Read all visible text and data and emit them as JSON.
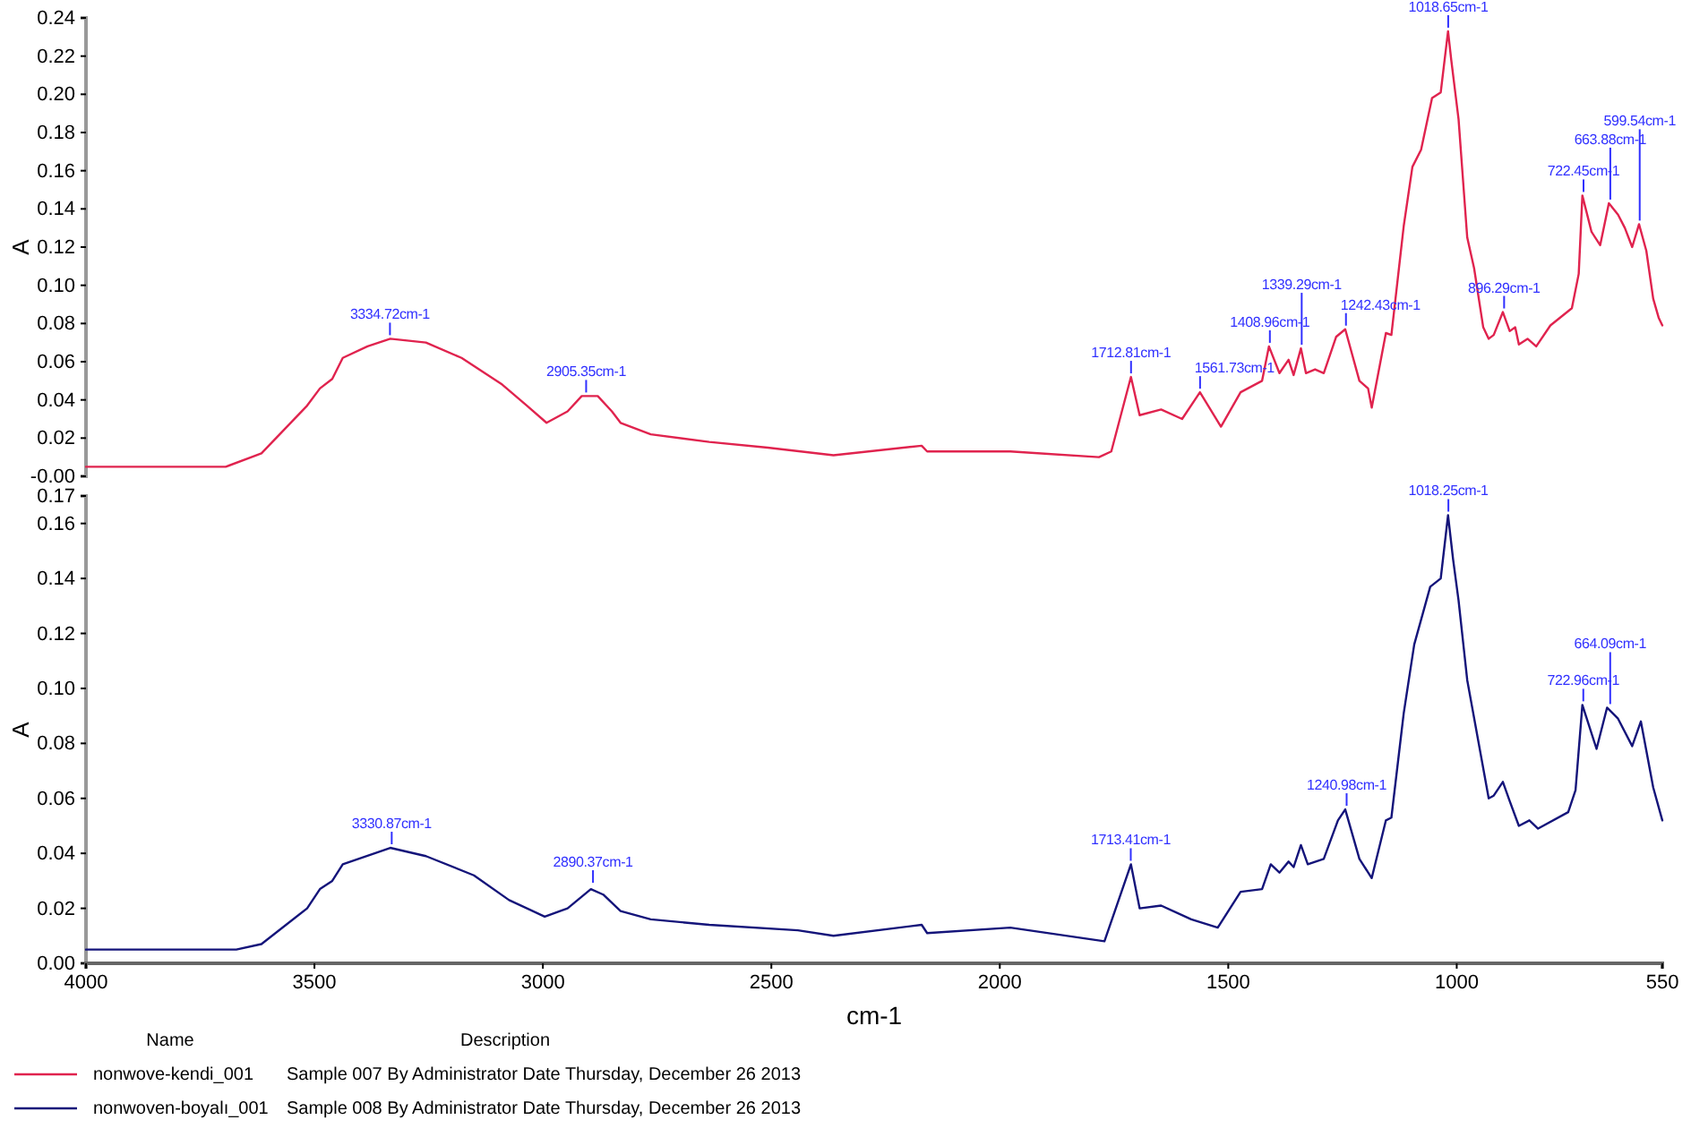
{
  "chart_data": [
    {
      "type": "line",
      "ylabel": "A",
      "xlim": [
        4000,
        550
      ],
      "ylim": [
        0,
        0.24
      ],
      "tick_labels": "y",
      "legend": "bottom",
      "grid": false,
      "line_style": "solid",
      "marker": "none",
      "yticks": [
        {
          "value": 0,
          "label": "-0.00"
        },
        {
          "value": 0.02,
          "label": "0.02"
        },
        {
          "value": 0.04,
          "label": "0.04"
        },
        {
          "value": 0.06,
          "label": "0.06"
        },
        {
          "value": 0.08,
          "label": "0.08"
        },
        {
          "value": 0.1,
          "label": "0.10"
        },
        {
          "value": 0.12,
          "label": "0.12"
        },
        {
          "value": 0.14,
          "label": "0.14"
        },
        {
          "value": 0.16,
          "label": "0.16"
        },
        {
          "value": 0.18,
          "label": "0.18"
        },
        {
          "value": 0.2,
          "label": "0.20"
        },
        {
          "value": 0.22,
          "label": "0.22"
        },
        {
          "value": 0.24,
          "label": "0.24"
        }
      ],
      "series": [
        {
          "name": "nonwove-kendi_001",
          "color": "#e0234e",
          "x": [
            4000,
            3694,
            3616,
            3516,
            3488,
            3461,
            3438,
            3384,
            3334,
            3256,
            3178,
            3089,
            3035,
            2992,
            2946,
            2915,
            2880,
            2849,
            2830,
            2764,
            2636,
            2508,
            2364,
            2171,
            2159,
            1977,
            1783,
            1756,
            1713,
            1694,
            1647,
            1601,
            1562,
            1516,
            1473,
            1426,
            1411,
            1388,
            1368,
            1357,
            1341,
            1330,
            1310,
            1291,
            1264,
            1244,
            1213,
            1194,
            1186,
            1155,
            1143,
            1116,
            1097,
            1078,
            1054,
            1035,
            1019,
            1012,
            996,
            977,
            962,
            942,
            930,
            919,
            899,
            884,
            872,
            864,
            845,
            826,
            795,
            748,
            733,
            725,
            705,
            686,
            667,
            647,
            632,
            616,
            601,
            585,
            570,
            558,
            550
          ],
          "values": [
            0.005,
            0.005,
            0.012,
            0.037,
            0.046,
            0.051,
            0.062,
            0.068,
            0.072,
            0.07,
            0.062,
            0.048,
            0.037,
            0.028,
            0.034,
            0.042,
            0.042,
            0.034,
            0.028,
            0.022,
            0.018,
            0.015,
            0.011,
            0.016,
            0.013,
            0.013,
            0.01,
            0.013,
            0.052,
            0.032,
            0.035,
            0.03,
            0.044,
            0.026,
            0.044,
            0.05,
            0.068,
            0.054,
            0.061,
            0.053,
            0.067,
            0.054,
            0.056,
            0.054,
            0.073,
            0.077,
            0.05,
            0.046,
            0.036,
            0.075,
            0.074,
            0.131,
            0.162,
            0.171,
            0.198,
            0.201,
            0.233,
            0.218,
            0.187,
            0.125,
            0.109,
            0.078,
            0.072,
            0.074,
            0.086,
            0.076,
            0.078,
            0.069,
            0.072,
            0.068,
            0.079,
            0.088,
            0.106,
            0.147,
            0.128,
            0.121,
            0.143,
            0.137,
            0.13,
            0.12,
            0.132,
            0.118,
            0.093,
            0.083,
            0.079
          ]
        }
      ],
      "annotations": [
        {
          "text": "3334.72cm-1",
          "x": 3334.72,
          "y": 0.072
        },
        {
          "text": "2905.35cm-1",
          "x": 2905.35,
          "y": 0.042
        },
        {
          "text": "1712.81cm-1",
          "x": 1712.81,
          "y": 0.052
        },
        {
          "text": "1561.73cm-1",
          "x": 1561.73,
          "y": 0.044
        },
        {
          "text": "1408.96cm-1",
          "x": 1408.96,
          "y": 0.068
        },
        {
          "text": "1339.29cm-1",
          "x": 1339.29,
          "y": 0.067
        },
        {
          "text": "1242.43cm-1",
          "x": 1242.43,
          "y": 0.077
        },
        {
          "text": "1018.65cm-1",
          "x": 1018.65,
          "y": 0.233
        },
        {
          "text": "896.29cm-1",
          "x": 896.29,
          "y": 0.086
        },
        {
          "text": "722.45cm-1",
          "x": 722.45,
          "y": 0.147
        },
        {
          "text": "663.88cm-1",
          "x": 663.88,
          "y": 0.143
        },
        {
          "text": "599.54cm-1",
          "x": 599.54,
          "y": 0.132
        },
        "Name",
        "Description",
        "Sample 007 By Administrator Date Thursday, December 26 2013"
      ]
    },
    {
      "type": "line",
      "ylabel": "A",
      "xlabel": "cm-1",
      "xlim": [
        4000,
        550
      ],
      "ylim": [
        0,
        0.17
      ],
      "legend": "bottom",
      "grid": false,
      "line_style": "solid",
      "marker": "none",
      "xticks": [
        4000,
        3500,
        3000,
        2500,
        2000,
        1500,
        1000,
        550
      ],
      "yticks": [
        {
          "value": 0,
          "label": "0.00"
        },
        {
          "value": 0.02,
          "label": "0.02"
        },
        {
          "value": 0.04,
          "label": "0.04"
        },
        {
          "value": 0.06,
          "label": "0.06"
        },
        {
          "value": 0.08,
          "label": "0.08"
        },
        {
          "value": 0.1,
          "label": "0.10"
        },
        {
          "value": 0.12,
          "label": "0.12"
        },
        {
          "value": 0.14,
          "label": "0.14"
        },
        {
          "value": 0.16,
          "label": "0.16"
        },
        {
          "value": 0.17,
          "label": "0.17"
        }
      ],
      "series": [
        {
          "name": "nonwoven-boyalı_001",
          "color": "#14147a",
          "x": [
            4000,
            3671,
            3616,
            3516,
            3488,
            3461,
            3438,
            3334,
            3256,
            3151,
            3074,
            2996,
            2946,
            2895,
            2868,
            2830,
            2764,
            2636,
            2442,
            2364,
            2171,
            2159,
            1977,
            1771,
            1713,
            1694,
            1647,
            1581,
            1523,
            1473,
            1426,
            1407,
            1388,
            1368,
            1357,
            1341,
            1326,
            1291,
            1260,
            1244,
            1213,
            1186,
            1155,
            1143,
            1116,
            1093,
            1058,
            1035,
            1019,
            1008,
            996,
            977,
            930,
            919,
            899,
            884,
            864,
            841,
            822,
            756,
            740,
            725,
            694,
            671,
            647,
            616,
            597,
            570,
            550
          ],
          "values": [
            0.005,
            0.005,
            0.007,
            0.02,
            0.027,
            0.03,
            0.036,
            0.042,
            0.039,
            0.032,
            0.023,
            0.017,
            0.02,
            0.027,
            0.025,
            0.019,
            0.016,
            0.014,
            0.012,
            0.01,
            0.014,
            0.011,
            0.013,
            0.008,
            0.036,
            0.02,
            0.021,
            0.016,
            0.013,
            0.026,
            0.027,
            0.036,
            0.033,
            0.037,
            0.035,
            0.043,
            0.036,
            0.038,
            0.052,
            0.056,
            0.038,
            0.031,
            0.052,
            0.053,
            0.091,
            0.116,
            0.137,
            0.14,
            0.163,
            0.147,
            0.132,
            0.103,
            0.06,
            0.061,
            0.066,
            0.059,
            0.05,
            0.052,
            0.049,
            0.055,
            0.063,
            0.094,
            0.078,
            0.093,
            0.089,
            0.079,
            0.088,
            0.064,
            0.052
          ]
        }
      ],
      "annotations": [
        {
          "text": "3330.87cm-1",
          "x": 3330.87,
          "y": 0.042
        },
        {
          "text": "2890.37cm-1",
          "x": 2890.37,
          "y": 0.028
        },
        {
          "text": "1713.41cm-1",
          "x": 1713.41,
          "y": 0.036
        },
        {
          "text": "1240.98cm-1",
          "x": 1240.98,
          "y": 0.056
        },
        {
          "text": "1018.25cm-1",
          "x": 1018.25,
          "y": 0.163
        },
        {
          "text": "722.96cm-1",
          "x": 722.96,
          "y": 0.094
        },
        {
          "text": "664.09cm-1",
          "x": 664.09,
          "y": 0.093
        },
        "Sample 008 By Administrator Date Thursday, December 26 2013"
      ]
    }
  ]
}
